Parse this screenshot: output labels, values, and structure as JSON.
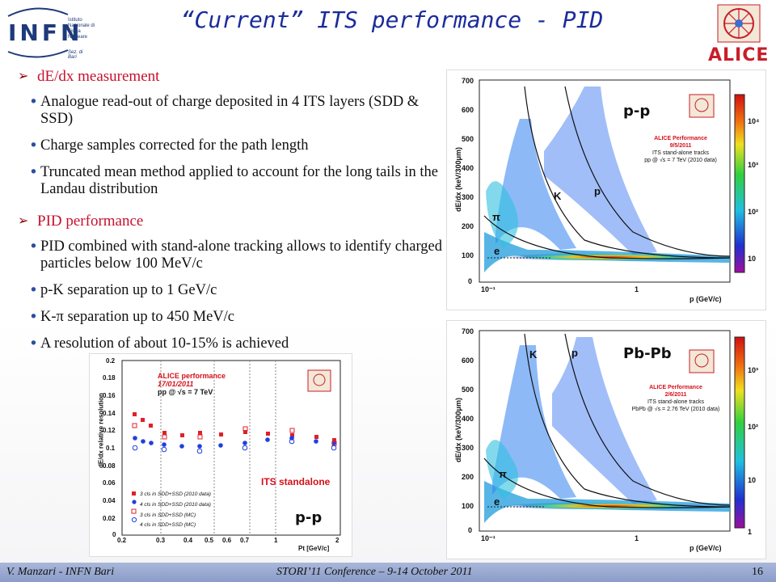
{
  "header": {
    "title": "“Current” ITS performance - PID",
    "infn_letters": "INFN",
    "infn_sub": "Istituto Nazionale di Fisica Nucleare",
    "infn_sez": "Sez. di Bari",
    "alice_logo_text": "ALICE"
  },
  "bullets": {
    "section1": "dE/dx measurement",
    "s1_items": [
      "Analogue read-out of  charge deposited in 4 ITS layers (SDD & SSD)",
      "Charge samples corrected for the path length",
      "Truncated mean method applied to account for the long tails in the Landau distribution"
    ],
    "section2": "PID performance",
    "s2_items": [
      "PID combined with stand-alone tracking allows to identify charged particles below 100 MeV/c",
      "p-K separation up to 1 GeV/c",
      "K-π separation up to  450 MeV/c",
      "A resolution of about  10-15% is achieved"
    ]
  },
  "plot_pp": {
    "tag": "p-p",
    "perf_title": "ALICE Performance",
    "perf_date": "9/5/2011",
    "perf_line1": "ITS stand-alone tracks",
    "perf_line2": "pp @ √s = 7 TeV (2010 data)",
    "ylabel": "dE/dx (keV/300μm)",
    "xlabel": "p (GeV/c)",
    "yticks": [
      "700",
      "600",
      "500",
      "400",
      "300",
      "200",
      "100",
      "0"
    ],
    "xticks": [
      "10⁻¹",
      "1"
    ],
    "cbticks": [
      "10⁴",
      "10³",
      "10²",
      "10"
    ],
    "labels": {
      "pi": "π",
      "e": "e",
      "K": "K",
      "p": "p"
    }
  },
  "plot_pbpb": {
    "tag": "Pb-Pb",
    "perf_title": "ALICE Performance",
    "perf_date": "2/6/2011",
    "perf_line1": "ITS stand-alone tracks",
    "perf_line2": "PbPb @ √s = 2.76 TeV (2010 data)",
    "ylabel": "dE/dx (keV/300μm)",
    "xlabel": "p (GeV/c)",
    "yticks": [
      "700",
      "600",
      "500",
      "400",
      "300",
      "200",
      "100",
      "0"
    ],
    "xticks": [
      "10⁻¹",
      "1"
    ],
    "cbticks": [
      "10³",
      "10²",
      "10",
      "1"
    ],
    "labels": {
      "pi": "π",
      "e": "e",
      "K": "K",
      "p": "p"
    }
  },
  "plot_res": {
    "tag": "p-p",
    "perf_title": "ALICE performance",
    "perf_date": "17/01/2011",
    "perf_line": "pp @ √s = 7 TeV",
    "ylabel": "dE/dx relative resolution",
    "xlabel": "Pt [GeV/c]",
    "standalone": "ITS standalone",
    "legend": [
      "3 cls in SDD+SSD (2010 data)",
      "4 cls in SDD+SSD (2010 data)",
      "3 cls in SDD+SSD (MC)",
      "4 cls in SDD+SSD (MC)"
    ],
    "yticks": [
      "0.2",
      "0.18",
      "0.16",
      "0.14",
      "0.12",
      "0.1",
      "0.08",
      "0.06",
      "0.04",
      "0.02",
      "0"
    ],
    "xticks": [
      "0.2",
      "0.3",
      "0.4",
      "0.5",
      "0.6",
      "0.7",
      "1",
      "2"
    ],
    "colors": {
      "data_red": "#e0202a",
      "data_blue": "#1f3fe0"
    }
  },
  "footer": {
    "left": "V. Manzari - INFN Bari",
    "center": "STORI’11 Conference – 9-14 October 2011",
    "page": "16"
  }
}
